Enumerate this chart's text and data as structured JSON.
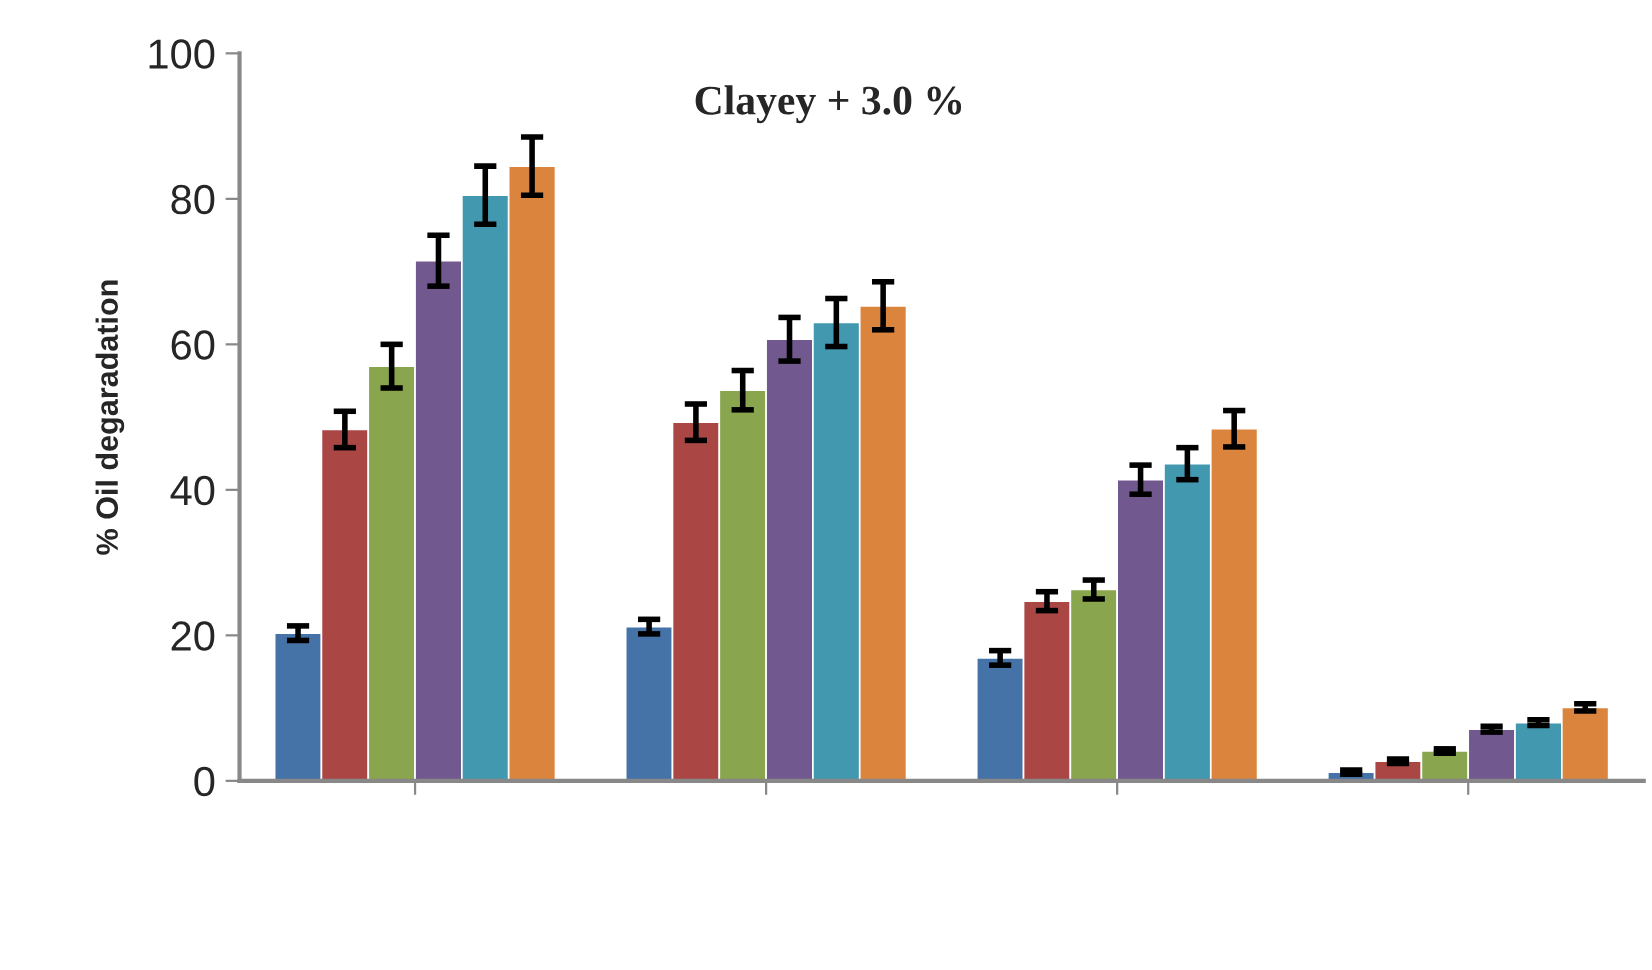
{
  "chart_data": {
    "type": "bar",
    "title": "Clayey + 3.0 %",
    "ylabel": "% Oil degaradation",
    "categories": [
      null,
      null,
      null,
      null
    ],
    "series": [
      {
        "color": "#4572a7",
        "values": [
          20.3,
          21.2,
          16.9,
          1.2
        ],
        "errors": [
          1,
          1,
          1,
          0.3
        ]
      },
      {
        "color": "#aa4643",
        "values": [
          48.3,
          49.3,
          24.7,
          2.7
        ],
        "errors": [
          2.5,
          2.5,
          1.3,
          0.3
        ]
      },
      {
        "color": "#89a54e",
        "values": [
          57,
          53.7,
          26.3,
          4.1
        ],
        "errors": [
          3,
          2.7,
          1.3,
          0.3
        ]
      },
      {
        "color": "#71588f",
        "values": [
          71.5,
          60.7,
          41.4,
          7.1
        ],
        "errors": [
          3.5,
          3,
          2,
          0.4
        ]
      },
      {
        "color": "#4198af",
        "values": [
          80.5,
          63,
          43.6,
          8.0
        ],
        "errors": [
          4,
          3.3,
          2.2,
          0.4
        ]
      },
      {
        "color": "#db843d",
        "values": [
          84.5,
          65.3,
          48.4,
          10.1
        ],
        "errors": [
          4,
          3.3,
          2.5,
          0.5
        ]
      }
    ],
    "ylim": [
      0,
      100
    ],
    "yticks": [
      0,
      20,
      40,
      60,
      80,
      100
    ],
    "grid": false
  }
}
